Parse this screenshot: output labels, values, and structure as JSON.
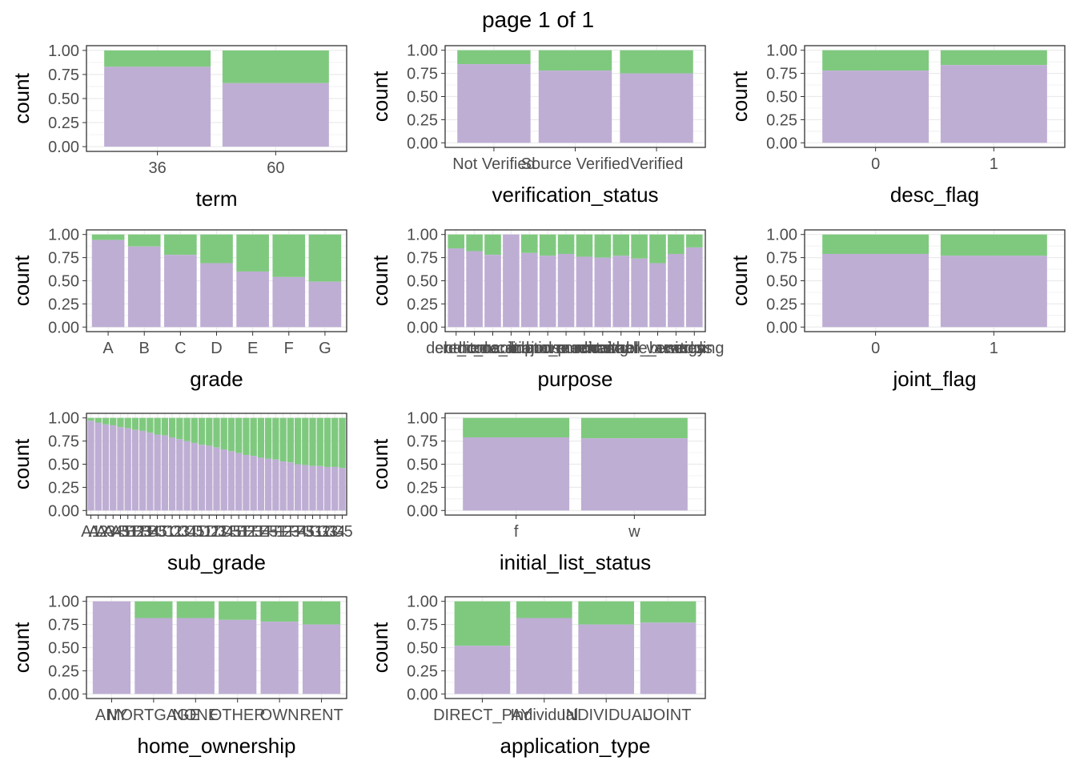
{
  "page_title": "page 1 of 1",
  "colors": {
    "fill_lower": "#BEAED4",
    "fill_upper": "#7FC97F",
    "grid": "#ebebeb",
    "panel_border": "#333333"
  },
  "chart_data": [
    {
      "type": "bar",
      "stacked": true,
      "xlabel": "term",
      "ylabel": "count",
      "categories": [
        "36",
        "60"
      ],
      "lower_fraction": [
        0.83,
        0.66
      ],
      "yticks": [
        "0.00",
        "0.25",
        "0.50",
        "0.75",
        "1.00"
      ],
      "ylim": [
        0,
        1
      ]
    },
    {
      "type": "bar",
      "stacked": true,
      "xlabel": "verification_status",
      "ylabel": "count",
      "categories": [
        "Not Verified",
        "Source Verified",
        "Verified"
      ],
      "lower_fraction": [
        0.85,
        0.78,
        0.75
      ],
      "yticks": [
        "0.00",
        "0.25",
        "0.50",
        "0.75",
        "1.00"
      ],
      "ylim": [
        0,
        1
      ]
    },
    {
      "type": "bar",
      "stacked": true,
      "xlabel": "desc_flag",
      "ylabel": "count",
      "categories": [
        "0",
        "1"
      ],
      "lower_fraction": [
        0.78,
        0.84
      ],
      "yticks": [
        "0.00",
        "0.25",
        "0.50",
        "0.75",
        "1.00"
      ],
      "ylim": [
        0,
        1
      ]
    },
    {
      "type": "bar",
      "stacked": true,
      "xlabel": "grade",
      "ylabel": "count",
      "categories": [
        "A",
        "B",
        "C",
        "D",
        "E",
        "F",
        "G"
      ],
      "lower_fraction": [
        0.94,
        0.87,
        0.78,
        0.69,
        0.6,
        0.54,
        0.49
      ],
      "yticks": [
        "0.00",
        "0.25",
        "0.50",
        "0.75",
        "1.00"
      ],
      "ylim": [
        0,
        1
      ]
    },
    {
      "type": "bar",
      "stacked": true,
      "xlabel": "purpose",
      "ylabel": "count",
      "categories": [
        "car",
        "credit_card",
        "debt_consolidation",
        "educational",
        "home_improvement",
        "house",
        "major_purchase",
        "medical",
        "moving",
        "other",
        "renewable_energy",
        "small_business",
        "vacation",
        "wedding"
      ],
      "lower_fraction": [
        0.85,
        0.82,
        0.78,
        1.0,
        0.8,
        0.77,
        0.79,
        0.76,
        0.75,
        0.77,
        0.74,
        0.69,
        0.79,
        0.86
      ],
      "yticks": [
        "0.00",
        "0.25",
        "0.50",
        "0.75",
        "1.00"
      ],
      "ylim": [
        0,
        1
      ]
    },
    {
      "type": "bar",
      "stacked": true,
      "xlabel": "joint_flag",
      "ylabel": "count",
      "categories": [
        "0",
        "1"
      ],
      "lower_fraction": [
        0.79,
        0.77
      ],
      "yticks": [
        "0.00",
        "0.25",
        "0.50",
        "0.75",
        "1.00"
      ],
      "ylim": [
        0,
        1
      ]
    },
    {
      "type": "bar",
      "stacked": true,
      "xlabel": "sub_grade",
      "ylabel": "count",
      "categories": [
        "A1",
        "A2",
        "A3",
        "A4",
        "A5",
        "B1",
        "B2",
        "B3",
        "B4",
        "B5",
        "C1",
        "C2",
        "C3",
        "C4",
        "C5",
        "D1",
        "D2",
        "D3",
        "D4",
        "D5",
        "E1",
        "E2",
        "E3",
        "E4",
        "E5",
        "F1",
        "F2",
        "F3",
        "F4",
        "F5",
        "G1",
        "G2",
        "G3",
        "G4",
        "G5"
      ],
      "lower_fraction": [
        0.97,
        0.95,
        0.93,
        0.92,
        0.9,
        0.89,
        0.87,
        0.86,
        0.84,
        0.82,
        0.81,
        0.79,
        0.77,
        0.75,
        0.73,
        0.71,
        0.7,
        0.68,
        0.66,
        0.64,
        0.62,
        0.6,
        0.59,
        0.57,
        0.56,
        0.55,
        0.53,
        0.52,
        0.5,
        0.49,
        0.48,
        0.48,
        0.47,
        0.47,
        0.46
      ],
      "yticks": [
        "0.00",
        "0.25",
        "0.50",
        "0.75",
        "1.00"
      ],
      "ylim": [
        0,
        1
      ]
    },
    {
      "type": "bar",
      "stacked": true,
      "xlabel": "initial_list_status",
      "ylabel": "count",
      "categories": [
        "f",
        "w"
      ],
      "lower_fraction": [
        0.79,
        0.78
      ],
      "yticks": [
        "0.00",
        "0.25",
        "0.50",
        "0.75",
        "1.00"
      ],
      "ylim": [
        0,
        1
      ]
    },
    {
      "type": "bar",
      "stacked": true,
      "xlabel": "home_ownership",
      "ylabel": "count",
      "categories": [
        "ANY",
        "MORTGAGE",
        "NONE",
        "OTHER",
        "OWN",
        "RENT"
      ],
      "lower_fraction": [
        1.0,
        0.82,
        0.82,
        0.8,
        0.78,
        0.75
      ],
      "yticks": [
        "0.00",
        "0.25",
        "0.50",
        "0.75",
        "1.00"
      ],
      "ylim": [
        0,
        1
      ]
    },
    {
      "type": "bar",
      "stacked": true,
      "xlabel": "application_type",
      "ylabel": "count",
      "categories": [
        "DIRECT_PAY",
        "Individual",
        "INDIVIDUAL",
        "JOINT"
      ],
      "lower_fraction": [
        0.52,
        0.82,
        0.75,
        0.77
      ],
      "yticks": [
        "0.00",
        "0.25",
        "0.50",
        "0.75",
        "1.00"
      ],
      "ylim": [
        0,
        1
      ]
    }
  ]
}
